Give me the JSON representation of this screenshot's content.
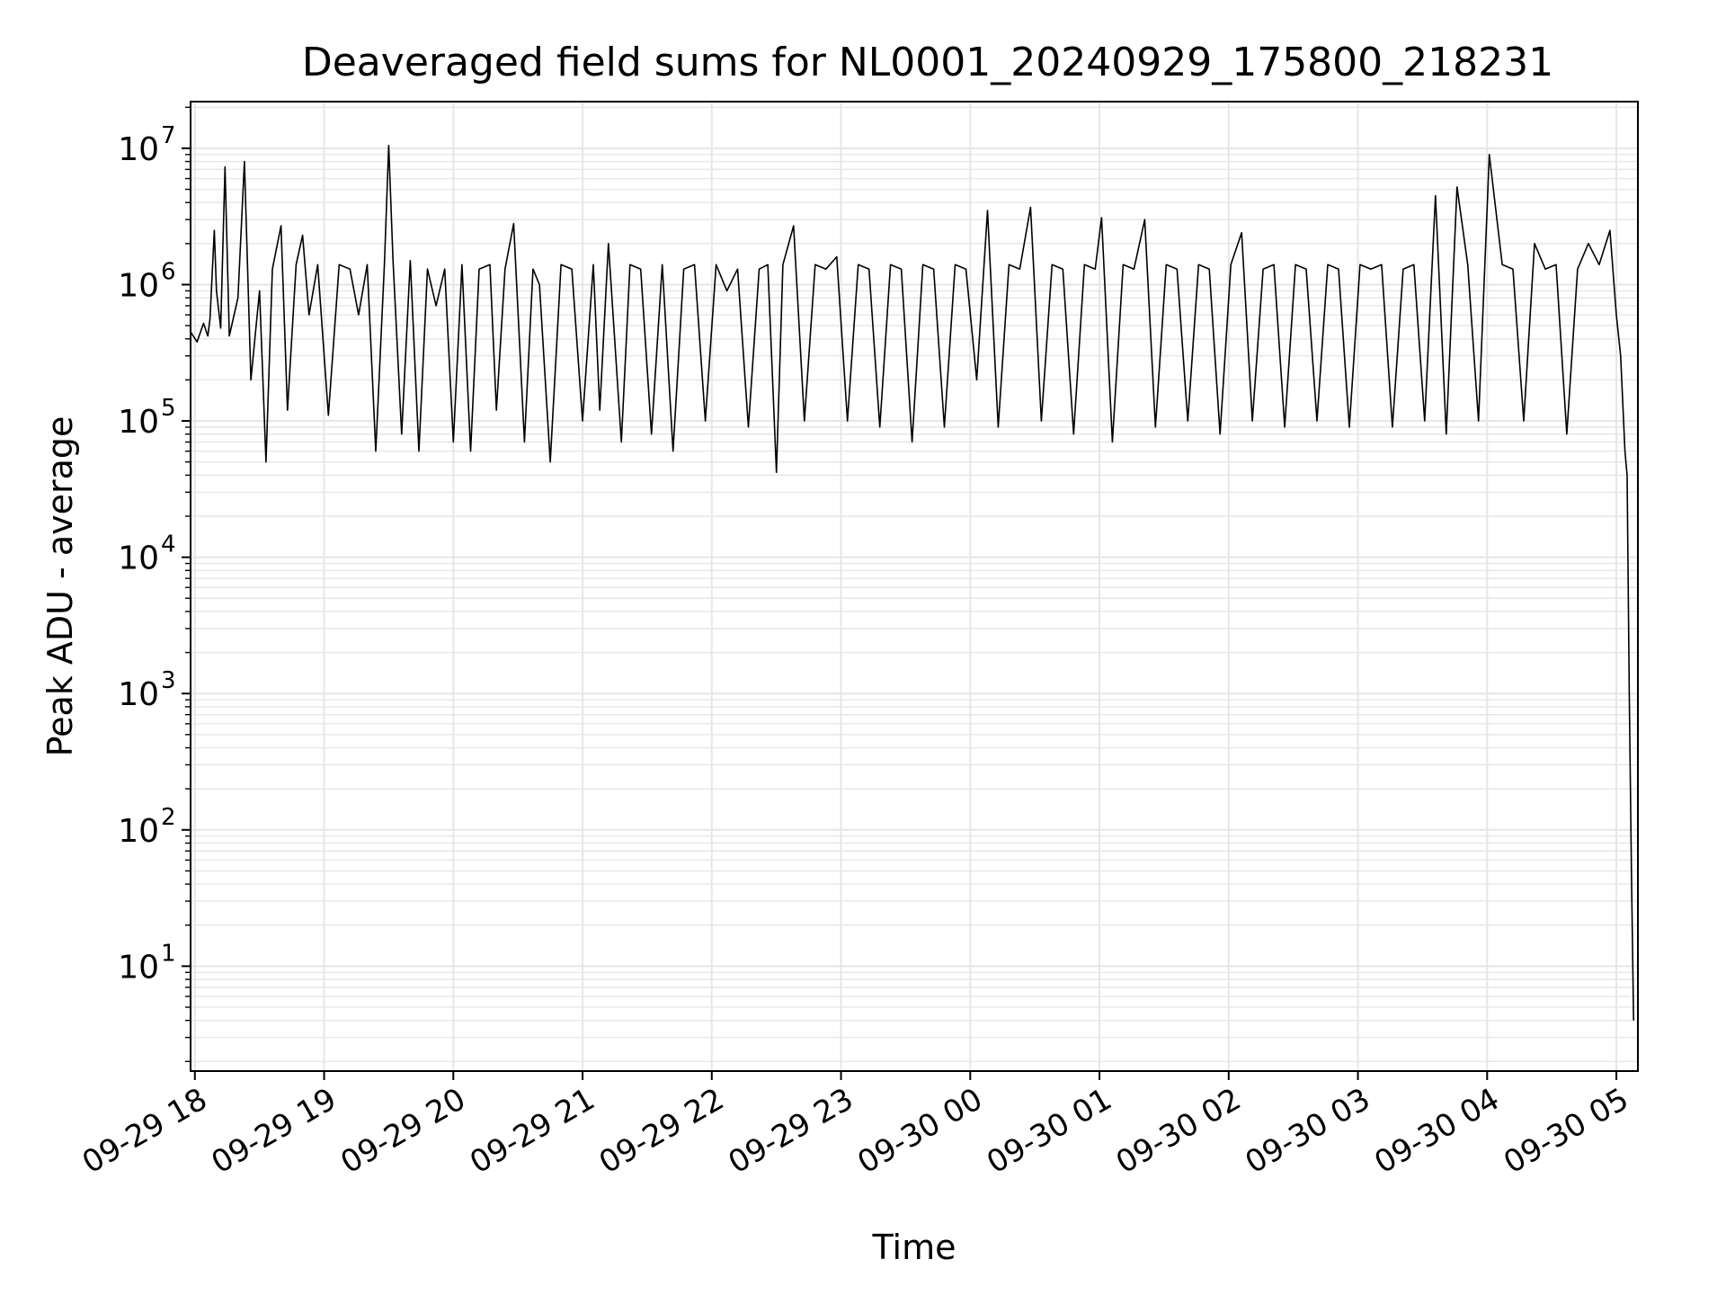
{
  "chart_data": {
    "type": "line",
    "title": "Deaveraged field sums for NL0001_20240929_175800_218231",
    "xlabel": "Time",
    "ylabel": "Peak ADU - average",
    "yscale": "log",
    "ylim": [
      1.7,
      22000000
    ],
    "xlim": [
      "2024-09-29 17:58",
      "2024-09-30 05:10"
    ],
    "grid": true,
    "line_color": "#000000",
    "grid_color": "#e6e6e6",
    "x_ticks": [
      {
        "time": "2024-09-29 18:00",
        "label": "09-29 18"
      },
      {
        "time": "2024-09-29 19:00",
        "label": "09-29 19"
      },
      {
        "time": "2024-09-29 20:00",
        "label": "09-29 20"
      },
      {
        "time": "2024-09-29 21:00",
        "label": "09-29 21"
      },
      {
        "time": "2024-09-29 22:00",
        "label": "09-29 22"
      },
      {
        "time": "2024-09-29 23:00",
        "label": "09-29 23"
      },
      {
        "time": "2024-09-30 00:00",
        "label": "09-30 00"
      },
      {
        "time": "2024-09-30 01:00",
        "label": "09-30 01"
      },
      {
        "time": "2024-09-30 02:00",
        "label": "09-30 02"
      },
      {
        "time": "2024-09-30 03:00",
        "label": "09-30 03"
      },
      {
        "time": "2024-09-30 04:00",
        "label": "09-30 04"
      },
      {
        "time": "2024-09-30 05:00",
        "label": "09-30 05"
      }
    ],
    "y_ticks": [
      {
        "value": 10,
        "base": "10",
        "exp": "1"
      },
      {
        "value": 100,
        "base": "10",
        "exp": "2"
      },
      {
        "value": 1000,
        "base": "10",
        "exp": "3"
      },
      {
        "value": 10000,
        "base": "10",
        "exp": "4"
      },
      {
        "value": 100000,
        "base": "10",
        "exp": "5"
      },
      {
        "value": 1000000,
        "base": "10",
        "exp": "6"
      },
      {
        "value": 10000000,
        "base": "10",
        "exp": "7"
      }
    ],
    "series": [
      {
        "x": [
          "2024-09-29 17:58",
          "2024-09-29 18:01",
          "2024-09-29 18:04",
          "2024-09-29 18:06",
          "2024-09-29 18:07",
          "2024-09-29 18:09",
          "2024-09-29 18:10",
          "2024-09-29 18:12",
          "2024-09-29 18:14",
          "2024-09-29 18:16",
          "2024-09-29 18:20",
          "2024-09-29 18:23",
          "2024-09-29 18:26",
          "2024-09-29 18:30",
          "2024-09-29 18:33",
          "2024-09-29 18:36",
          "2024-09-29 18:40",
          "2024-09-29 18:43",
          "2024-09-29 18:47",
          "2024-09-29 18:50",
          "2024-09-29 18:53",
          "2024-09-29 18:57",
          "2024-09-29 19:02",
          "2024-09-29 19:07",
          "2024-09-29 19:12",
          "2024-09-29 19:16",
          "2024-09-29 19:20",
          "2024-09-29 19:24",
          "2024-09-29 19:28",
          "2024-09-29 19:30",
          "2024-09-29 19:32",
          "2024-09-29 19:36",
          "2024-09-29 19:40",
          "2024-09-29 19:44",
          "2024-09-29 19:48",
          "2024-09-29 19:52",
          "2024-09-29 19:56",
          "2024-09-29 20:00",
          "2024-09-29 20:04",
          "2024-09-29 20:08",
          "2024-09-29 20:12",
          "2024-09-29 20:17",
          "2024-09-29 20:20",
          "2024-09-29 20:24",
          "2024-09-29 20:28",
          "2024-09-29 20:33",
          "2024-09-29 20:37",
          "2024-09-29 20:40",
          "2024-09-29 20:45",
          "2024-09-29 20:50",
          "2024-09-29 20:55",
          "2024-09-29 21:00",
          "2024-09-29 21:05",
          "2024-09-29 21:08",
          "2024-09-29 21:12",
          "2024-09-29 21:18",
          "2024-09-29 21:22",
          "2024-09-29 21:27",
          "2024-09-29 21:32",
          "2024-09-29 21:37",
          "2024-09-29 21:42",
          "2024-09-29 21:47",
          "2024-09-29 21:52",
          "2024-09-29 21:57",
          "2024-09-29 22:02",
          "2024-09-29 22:07",
          "2024-09-29 22:12",
          "2024-09-29 22:17",
          "2024-09-29 22:22",
          "2024-09-29 22:26",
          "2024-09-29 22:30",
          "2024-09-29 22:33",
          "2024-09-29 22:38",
          "2024-09-29 22:43",
          "2024-09-29 22:48",
          "2024-09-29 22:53",
          "2024-09-29 22:58",
          "2024-09-29 23:03",
          "2024-09-29 23:08",
          "2024-09-29 23:13",
          "2024-09-29 23:18",
          "2024-09-29 23:23",
          "2024-09-29 23:28",
          "2024-09-29 23:33",
          "2024-09-29 23:38",
          "2024-09-29 23:43",
          "2024-09-29 23:48",
          "2024-09-29 23:53",
          "2024-09-29 23:58",
          "2024-09-30 00:03",
          "2024-09-30 00:08",
          "2024-09-30 00:13",
          "2024-09-30 00:18",
          "2024-09-30 00:23",
          "2024-09-30 00:28",
          "2024-09-30 00:33",
          "2024-09-30 00:38",
          "2024-09-30 00:43",
          "2024-09-30 00:48",
          "2024-09-30 00:53",
          "2024-09-30 00:58",
          "2024-09-30 01:01",
          "2024-09-30 01:06",
          "2024-09-30 01:11",
          "2024-09-30 01:16",
          "2024-09-30 01:21",
          "2024-09-30 01:26",
          "2024-09-30 01:31",
          "2024-09-30 01:36",
          "2024-09-30 01:41",
          "2024-09-30 01:46",
          "2024-09-30 01:51",
          "2024-09-30 01:56",
          "2024-09-30 02:01",
          "2024-09-30 02:06",
          "2024-09-30 02:11",
          "2024-09-30 02:16",
          "2024-09-30 02:21",
          "2024-09-30 02:26",
          "2024-09-30 02:31",
          "2024-09-30 02:36",
          "2024-09-30 02:41",
          "2024-09-30 02:46",
          "2024-09-30 02:51",
          "2024-09-30 02:56",
          "2024-09-30 03:01",
          "2024-09-30 03:06",
          "2024-09-30 03:11",
          "2024-09-30 03:16",
          "2024-09-30 03:21",
          "2024-09-30 03:26",
          "2024-09-30 03:31",
          "2024-09-30 03:36",
          "2024-09-30 03:41",
          "2024-09-30 03:46",
          "2024-09-30 03:51",
          "2024-09-30 03:56",
          "2024-09-30 04:01",
          "2024-09-30 04:07",
          "2024-09-30 04:12",
          "2024-09-30 04:17",
          "2024-09-30 04:22",
          "2024-09-30 04:27",
          "2024-09-30 04:32",
          "2024-09-30 04:37",
          "2024-09-30 04:42",
          "2024-09-30 04:47",
          "2024-09-30 04:52",
          "2024-09-30 04:57",
          "2024-09-30 05:00",
          "2024-09-30 05:02",
          "2024-09-30 05:04",
          "2024-09-30 05:05",
          "2024-09-30 05:06",
          "2024-09-30 05:07",
          "2024-09-30 05:08"
        ],
        "y": [
          450000,
          380000,
          520000,
          420000,
          560000,
          2500000,
          900000,
          480000,
          7300000,
          420000,
          800000,
          8000000,
          200000,
          900000,
          50000,
          1300000,
          2700000,
          120000,
          1400000,
          2300000,
          600000,
          1400000,
          110000,
          1400000,
          1300000,
          600000,
          1400000,
          60000,
          1400000,
          10500000,
          1500000,
          80000,
          1500000,
          60000,
          1300000,
          700000,
          1300000,
          70000,
          1400000,
          60000,
          1300000,
          1400000,
          120000,
          1300000,
          2800000,
          70000,
          1300000,
          1000000,
          50000,
          1400000,
          1300000,
          100000,
          1400000,
          120000,
          2000000,
          70000,
          1400000,
          1300000,
          80000,
          1400000,
          60000,
          1300000,
          1400000,
          100000,
          1400000,
          900000,
          1300000,
          90000,
          1300000,
          1400000,
          42000,
          1400000,
          2700000,
          100000,
          1400000,
          1300000,
          1600000,
          100000,
          1400000,
          1300000,
          90000,
          1400000,
          1300000,
          70000,
          1400000,
          1300000,
          90000,
          1400000,
          1300000,
          200000,
          3500000,
          90000,
          1400000,
          1300000,
          3700000,
          100000,
          1400000,
          1300000,
          80000,
          1400000,
          1300000,
          3100000,
          70000,
          1400000,
          1300000,
          3000000,
          90000,
          1400000,
          1300000,
          100000,
          1400000,
          1300000,
          80000,
          1400000,
          2400000,
          100000,
          1300000,
          1400000,
          90000,
          1400000,
          1300000,
          100000,
          1400000,
          1300000,
          90000,
          1400000,
          1300000,
          1400000,
          90000,
          1300000,
          1400000,
          100000,
          4500000,
          80000,
          5200000,
          1400000,
          100000,
          9000000,
          1400000,
          1300000,
          100000,
          2000000,
          1300000,
          1400000,
          80000,
          1300000,
          2000000,
          1400000,
          2500000,
          600000,
          300000,
          60000,
          40000,
          1000,
          50,
          4
        ]
      }
    ]
  }
}
